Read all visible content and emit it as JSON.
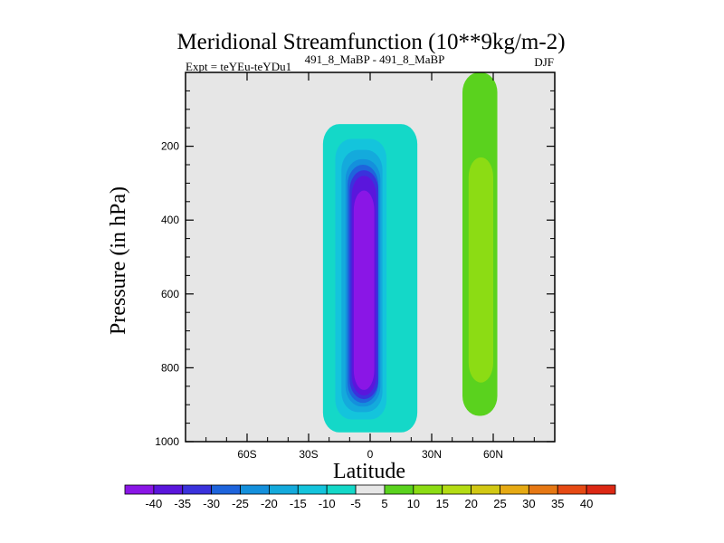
{
  "chart_data": {
    "type": "heatmap",
    "title": "Meridional Streamfunction (10**9kg/m-2)",
    "subtitle_left": "Expt = teYEu-teYDu1",
    "subtitle_center": "491_8_MaBP - 491_8_MaBP",
    "subtitle_right": "DJF",
    "xlabel": "Latitude",
    "ylabel": "Pressure (in hPa)",
    "xlim": [
      -90,
      90
    ],
    "ylim": [
      1000,
      0
    ],
    "x_ticks": [
      {
        "value": -60,
        "label": "60S"
      },
      {
        "value": -30,
        "label": "30S"
      },
      {
        "value": 0,
        "label": "0"
      },
      {
        "value": 30,
        "label": "30N"
      },
      {
        "value": 60,
        "label": "60N"
      }
    ],
    "y_ticks": [
      {
        "value": 200,
        "label": "200"
      },
      {
        "value": 400,
        "label": "400"
      },
      {
        "value": 600,
        "label": "600"
      },
      {
        "value": 800,
        "label": "800"
      },
      {
        "value": 1000,
        "label": "1000"
      }
    ],
    "background_color": "#e6e6e6",
    "colorbar": {
      "labels": [
        "-40",
        "-35",
        "-30",
        "-25",
        "-20",
        "-15",
        "-10",
        "-5",
        "5",
        "10",
        "15",
        "20",
        "25",
        "30",
        "35",
        "40"
      ],
      "colors": [
        "#8a16e6",
        "#5a16dc",
        "#3a32dc",
        "#1e64dc",
        "#1490dc",
        "#14aadc",
        "#14c4dc",
        "#14d8c8",
        "#e6e6e6",
        "#5ad21e",
        "#8cdc14",
        "#b4dc14",
        "#d2c814",
        "#e6aa14",
        "#e67814",
        "#e64a14",
        "#dc2814"
      ]
    },
    "regions": [
      {
        "name": "neg-5",
        "color_index": 7,
        "lat_range": [
          -23,
          23
        ],
        "p_range": [
          140,
          975
        ],
        "note": "Cyan outer envelope of southern tropical cell"
      },
      {
        "name": "neg-10",
        "color_index": 6,
        "lat_range": [
          -17,
          8
        ],
        "p_range": [
          180,
          940
        ]
      },
      {
        "name": "neg-15",
        "color_index": 5,
        "lat_range": [
          -14,
          6
        ],
        "p_range": [
          210,
          920
        ]
      },
      {
        "name": "neg-20",
        "color_index": 4,
        "lat_range": [
          -12,
          5
        ],
        "p_range": [
          235,
          905
        ]
      },
      {
        "name": "neg-25",
        "color_index": 3,
        "lat_range": [
          -11,
          4
        ],
        "p_range": [
          250,
          895
        ]
      },
      {
        "name": "neg-30",
        "color_index": 2,
        "lat_range": [
          -10,
          4
        ],
        "p_range": [
          265,
          885
        ]
      },
      {
        "name": "neg-35",
        "color_index": 1,
        "lat_range": [
          -9,
          3
        ],
        "p_range": [
          280,
          875
        ]
      },
      {
        "name": "neg-40",
        "color_index": 0,
        "lat_range": [
          -8,
          2
        ],
        "p_range": [
          320,
          860
        ]
      },
      {
        "name": "pos-5",
        "color_index": 9,
        "lat_range": [
          45,
          62
        ],
        "p_range": [
          0,
          930
        ],
        "note": "Northern positive cell"
      },
      {
        "name": "pos-10",
        "color_index": 10,
        "lat_range": [
          48,
          60
        ],
        "p_range": [
          230,
          840
        ]
      }
    ]
  }
}
